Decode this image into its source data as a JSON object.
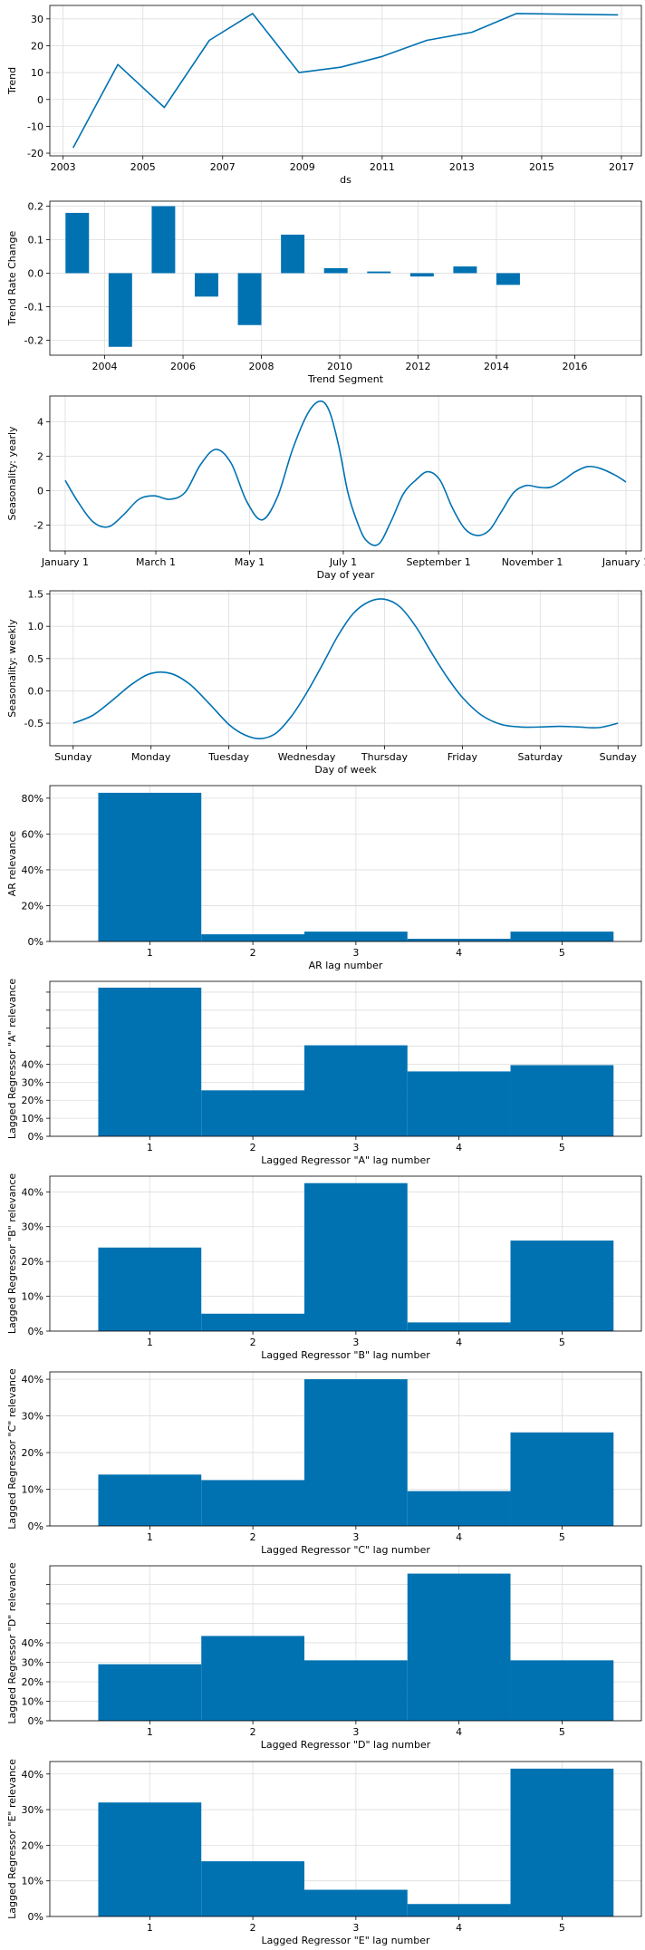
{
  "colors": {
    "series": "#0072B2",
    "grid": "#dddddd",
    "axis": "#000000"
  },
  "chart_data": [
    {
      "id": "trend",
      "type": "line",
      "xlabel": "ds",
      "ylabel": "Trend",
      "x_type": "date",
      "x": [
        "2003-04-01",
        "2004-05-15",
        "2005-07-15",
        "2006-09-01",
        "2007-10-01",
        "2008-12-01",
        "2009-12-15",
        "2011-01-01",
        "2012-02-15",
        "2013-04-01",
        "2014-05-15",
        "2016-12-01"
      ],
      "series": [
        {
          "values": [
            -18,
            13,
            -3,
            22,
            32,
            10,
            12,
            16,
            22,
            25,
            32,
            31.5
          ]
        }
      ],
      "xlim": [
        "2002-09-01",
        "2017-07-01"
      ],
      "ylim": [
        -21,
        35
      ],
      "xticks": [
        "2003",
        "2005",
        "2007",
        "2009",
        "2011",
        "2013",
        "2015",
        "2017"
      ],
      "yticks": [
        -20,
        -10,
        0,
        10,
        20,
        30
      ],
      "grid": true
    },
    {
      "id": "trend-rate",
      "type": "bar",
      "xlabel": "Trend Segment",
      "ylabel": "Trend Rate Change",
      "x_type": "year",
      "x": [
        2003.3,
        2004.4,
        2005.5,
        2006.6,
        2007.7,
        2008.8,
        2009.9,
        2011.0,
        2012.1,
        2013.2,
        2014.3
      ],
      "values": [
        0.18,
        -0.22,
        0.2,
        -0.07,
        -0.155,
        0.115,
        0.015,
        0.005,
        -0.01,
        0.02,
        -0.035
      ],
      "bar_width_years": 0.6,
      "xlim": [
        2002.6,
        2017.7
      ],
      "ylim": [
        -0.245,
        0.215
      ],
      "xticks": [
        "2004",
        "2006",
        "2008",
        "2010",
        "2012",
        "2014",
        "2016"
      ],
      "yticks": [
        -0.2,
        -0.1,
        0.0,
        0.1,
        0.2
      ],
      "grid": true
    },
    {
      "id": "yearly",
      "type": "line",
      "xlabel": "Day of year",
      "ylabel": "Seasonality: yearly",
      "x_unit": "day of year",
      "x": [
        0,
        8,
        18,
        28,
        38,
        48,
        58,
        68,
        78,
        88,
        98,
        108,
        118,
        128,
        138,
        148,
        158,
        166,
        172,
        178,
        184,
        190,
        196,
        204,
        212,
        220,
        228,
        236,
        244,
        252,
        260,
        268,
        276,
        284,
        292,
        300,
        308,
        316,
        324,
        332,
        340,
        348,
        358,
        365
      ],
      "series": [
        {
          "values": [
            0.6,
            -0.6,
            -1.8,
            -2.1,
            -1.4,
            -0.5,
            -0.3,
            -0.5,
            -0.1,
            1.5,
            2.4,
            1.6,
            -0.6,
            -1.7,
            -0.4,
            2.4,
            4.5,
            5.2,
            4.6,
            2.6,
            -0.1,
            -1.8,
            -2.9,
            -3.1,
            -1.8,
            -0.2,
            0.6,
            1.1,
            0.6,
            -1.0,
            -2.2,
            -2.6,
            -2.3,
            -1.2,
            -0.1,
            0.3,
            0.2,
            0.2,
            0.6,
            1.1,
            1.4,
            1.3,
            0.9,
            0.5
          ]
        }
      ],
      "xlim": [
        -10,
        375
      ],
      "ylim": [
        -3.5,
        5.5
      ],
      "xticks": [
        "January 1",
        "March 1",
        "May 1",
        "July 1",
        "September 1",
        "November 1",
        "January 1"
      ],
      "xtick_days": [
        0,
        59,
        120,
        181,
        243,
        304,
        365
      ],
      "yticks": [
        -2,
        0,
        2,
        4
      ],
      "grid": true
    },
    {
      "id": "weekly",
      "type": "line",
      "xlabel": "Day of week",
      "ylabel": "Seasonality: weekly",
      "x_unit": "days from Sunday",
      "x": [
        0,
        0.25,
        0.5,
        0.75,
        1.0,
        1.25,
        1.5,
        1.75,
        2.0,
        2.2,
        2.4,
        2.6,
        2.8,
        3.0,
        3.2,
        3.4,
        3.6,
        3.8,
        4.0,
        4.2,
        4.4,
        4.6,
        4.8,
        5.0,
        5.25,
        5.5,
        5.75,
        6.0,
        6.25,
        6.5,
        6.75,
        7.0
      ],
      "series": [
        {
          "values": [
            -0.5,
            -0.38,
            -0.15,
            0.1,
            0.27,
            0.27,
            0.1,
            -0.2,
            -0.52,
            -0.68,
            -0.74,
            -0.66,
            -0.4,
            -0.03,
            0.4,
            0.85,
            1.2,
            1.38,
            1.42,
            1.3,
            1.0,
            0.6,
            0.22,
            -0.1,
            -0.38,
            -0.52,
            -0.56,
            -0.56,
            -0.55,
            -0.56,
            -0.57,
            -0.5
          ]
        }
      ],
      "xlim": [
        -0.3,
        7.3
      ],
      "ylim": [
        -0.85,
        1.55
      ],
      "xticks": [
        "Sunday",
        "Monday",
        "Tuesday",
        "Wednesday",
        "Thursday",
        "Friday",
        "Saturday",
        "Sunday"
      ],
      "yticks": [
        -0.5,
        0.0,
        0.5,
        1.0,
        1.5
      ],
      "grid": true
    },
    {
      "id": "ar",
      "type": "bar",
      "xlabel": "AR lag number",
      "ylabel": "AR relevance",
      "categories": [
        "1",
        "2",
        "3",
        "4",
        "5"
      ],
      "values": [
        83,
        4,
        5.5,
        1.5,
        5.5
      ],
      "value_unit": "%",
      "ylim": [
        0,
        87
      ],
      "yticks": [
        "0%",
        "20%",
        "40%",
        "60%",
        "80%"
      ],
      "ytick_values": [
        0,
        20,
        40,
        60,
        80
      ],
      "grid": true
    },
    {
      "id": "lagged-a",
      "type": "bar",
      "xlabel": "Lagged Regressor \"A\" lag number",
      "ylabel": "Lagged Regressor \"A\" relevance",
      "categories": [
        "1",
        "2",
        "3",
        "4",
        "5"
      ],
      "values": [
        82.5,
        25.5,
        50.5,
        36,
        39.5
      ],
      "value_unit": "%",
      "ylim": [
        0,
        86
      ],
      "yticks": [
        "0%",
        "10%",
        "20%",
        "30%",
        "40%"
      ],
      "ytick_values": [
        0,
        10,
        20,
        30,
        40
      ],
      "extra_gridlines": [
        50,
        60,
        70,
        80
      ],
      "grid": true
    },
    {
      "id": "lagged-b",
      "type": "bar",
      "xlabel": "Lagged Regressor \"B\" lag number",
      "ylabel": "Lagged Regressor \"B\" relevance",
      "categories": [
        "1",
        "2",
        "3",
        "4",
        "5"
      ],
      "values": [
        24,
        5,
        42.5,
        2.5,
        26
      ],
      "value_unit": "%",
      "ylim": [
        0,
        44.5
      ],
      "yticks": [
        "0%",
        "10%",
        "20%",
        "30%",
        "40%"
      ],
      "ytick_values": [
        0,
        10,
        20,
        30,
        40
      ],
      "grid": true
    },
    {
      "id": "lagged-c",
      "type": "bar",
      "xlabel": "Lagged Regressor \"C\" lag number",
      "ylabel": "Lagged Regressor \"C\" relevance",
      "categories": [
        "1",
        "2",
        "3",
        "4",
        "5"
      ],
      "values": [
        14,
        12.5,
        40,
        9.5,
        25.5
      ],
      "value_unit": "%",
      "ylim": [
        0,
        42
      ],
      "yticks": [
        "0%",
        "10%",
        "20%",
        "30%",
        "40%"
      ],
      "ytick_values": [
        0,
        10,
        20,
        30,
        40
      ],
      "grid": true
    },
    {
      "id": "lagged-d",
      "type": "bar",
      "xlabel": "Lagged Regressor \"D\" lag number",
      "ylabel": "Lagged Regressor \"D\" relevance",
      "categories": [
        "1",
        "2",
        "3",
        "4",
        "5"
      ],
      "values": [
        29,
        43.5,
        31,
        75.5,
        31
      ],
      "value_unit": "%",
      "ylim": [
        0,
        79.5
      ],
      "yticks": [
        "0%",
        "10%",
        "20%",
        "30%",
        "40%"
      ],
      "ytick_values": [
        0,
        10,
        20,
        30,
        40
      ],
      "extra_gridlines": [
        50,
        60,
        70
      ],
      "grid": true
    },
    {
      "id": "lagged-e",
      "type": "bar",
      "xlabel": "Lagged Regressor \"E\" lag number",
      "ylabel": "Lagged Regressor \"E\" relevance",
      "categories": [
        "1",
        "2",
        "3",
        "4",
        "5"
      ],
      "values": [
        32,
        15.5,
        7.5,
        3.5,
        41.5
      ],
      "value_unit": "%",
      "ylim": [
        0,
        43.5
      ],
      "yticks": [
        "0%",
        "10%",
        "20%",
        "30%",
        "40%"
      ],
      "ytick_values": [
        0,
        10,
        20,
        30,
        40
      ],
      "grid": true
    }
  ]
}
